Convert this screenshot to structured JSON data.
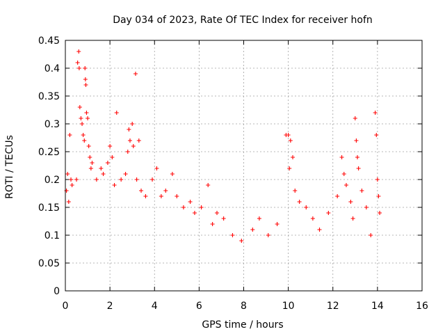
{
  "chart_data": {
    "type": "scatter",
    "title": "Day 034 of 2023, Rate Of TEC Index for receiver hofn",
    "xlabel": "GPS time / hours",
    "ylabel": "ROTI / TECUs",
    "xlim": [
      0,
      16
    ],
    "ylim": [
      0,
      0.45
    ],
    "xticks": [
      "0",
      "2",
      "4",
      "6",
      "8",
      "10",
      "12",
      "14",
      "16"
    ],
    "yticks": [
      "0",
      "0.05",
      "0.1",
      "0.15",
      "0.2",
      "0.25",
      "0.3",
      "0.35",
      "0.4",
      "0.45"
    ],
    "grid": true,
    "marker": "+",
    "color": "#ff0000",
    "series": [
      {
        "points": [
          [
            0.05,
            0.18
          ],
          [
            0.1,
            0.21
          ],
          [
            0.15,
            0.16
          ],
          [
            0.2,
            0.28
          ],
          [
            0.25,
            0.2
          ],
          [
            0.3,
            0.19
          ],
          [
            0.5,
            0.2
          ],
          [
            0.55,
            0.41
          ],
          [
            0.6,
            0.43
          ],
          [
            0.62,
            0.4
          ],
          [
            0.65,
            0.33
          ],
          [
            0.7,
            0.31
          ],
          [
            0.75,
            0.3
          ],
          [
            0.8,
            0.28
          ],
          [
            0.85,
            0.27
          ],
          [
            0.88,
            0.4
          ],
          [
            0.9,
            0.38
          ],
          [
            0.92,
            0.37
          ],
          [
            0.95,
            0.32
          ],
          [
            1.0,
            0.31
          ],
          [
            1.05,
            0.26
          ],
          [
            1.1,
            0.24
          ],
          [
            1.15,
            0.22
          ],
          [
            1.2,
            0.23
          ],
          [
            1.4,
            0.2
          ],
          [
            1.6,
            0.22
          ],
          [
            1.7,
            0.21
          ],
          [
            1.9,
            0.23
          ],
          [
            2.0,
            0.26
          ],
          [
            2.1,
            0.24
          ],
          [
            2.2,
            0.19
          ],
          [
            2.3,
            0.32
          ],
          [
            2.5,
            0.2
          ],
          [
            2.7,
            0.21
          ],
          [
            2.8,
            0.25
          ],
          [
            2.85,
            0.29
          ],
          [
            2.9,
            0.27
          ],
          [
            3.0,
            0.3
          ],
          [
            3.05,
            0.26
          ],
          [
            3.15,
            0.39
          ],
          [
            3.2,
            0.2
          ],
          [
            3.3,
            0.27
          ],
          [
            3.4,
            0.18
          ],
          [
            3.6,
            0.17
          ],
          [
            3.9,
            0.2
          ],
          [
            4.1,
            0.22
          ],
          [
            4.3,
            0.17
          ],
          [
            4.5,
            0.18
          ],
          [
            4.8,
            0.21
          ],
          [
            5.0,
            0.17
          ],
          [
            5.3,
            0.15
          ],
          [
            5.6,
            0.16
          ],
          [
            5.8,
            0.14
          ],
          [
            6.1,
            0.15
          ],
          [
            6.4,
            0.19
          ],
          [
            6.6,
            0.12
          ],
          [
            6.8,
            0.14
          ],
          [
            7.1,
            0.13
          ],
          [
            7.5,
            0.1
          ],
          [
            7.9,
            0.09
          ],
          [
            8.4,
            0.11
          ],
          [
            8.7,
            0.13
          ],
          [
            9.1,
            0.1
          ],
          [
            9.5,
            0.12
          ],
          [
            9.9,
            0.28
          ],
          [
            10.0,
            0.28
          ],
          [
            10.05,
            0.22
          ],
          [
            10.1,
            0.27
          ],
          [
            10.2,
            0.24
          ],
          [
            10.3,
            0.18
          ],
          [
            10.5,
            0.16
          ],
          [
            10.8,
            0.15
          ],
          [
            11.1,
            0.13
          ],
          [
            11.4,
            0.11
          ],
          [
            11.8,
            0.14
          ],
          [
            12.2,
            0.17
          ],
          [
            12.4,
            0.24
          ],
          [
            12.5,
            0.21
          ],
          [
            12.6,
            0.19
          ],
          [
            12.8,
            0.16
          ],
          [
            12.9,
            0.13
          ],
          [
            13.0,
            0.31
          ],
          [
            13.05,
            0.27
          ],
          [
            13.1,
            0.24
          ],
          [
            13.15,
            0.22
          ],
          [
            13.3,
            0.18
          ],
          [
            13.5,
            0.15
          ],
          [
            13.7,
            0.1
          ],
          [
            13.9,
            0.32
          ],
          [
            13.95,
            0.28
          ],
          [
            14.0,
            0.2
          ],
          [
            14.05,
            0.17
          ],
          [
            14.1,
            0.14
          ]
        ]
      }
    ]
  }
}
